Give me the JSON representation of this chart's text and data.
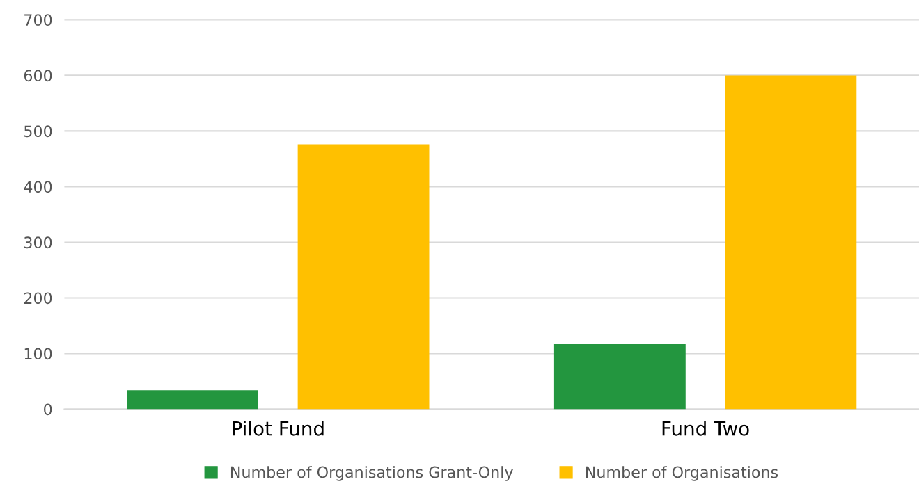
{
  "chart_data": {
    "type": "bar",
    "categories": [
      "Pilot Fund",
      "Fund Two"
    ],
    "series": [
      {
        "name": "Number of Organisations Grant-Only",
        "color": "#23963f",
        "values": [
          34,
          118
        ]
      },
      {
        "name": "Number of Organisations",
        "color": "#ffc000",
        "values": [
          476,
          600
        ]
      }
    ],
    "ylim": [
      0,
      700
    ],
    "yticks": [
      0,
      100,
      200,
      300,
      400,
      500,
      600,
      700
    ],
    "grid": "y",
    "legend": "bottom"
  }
}
